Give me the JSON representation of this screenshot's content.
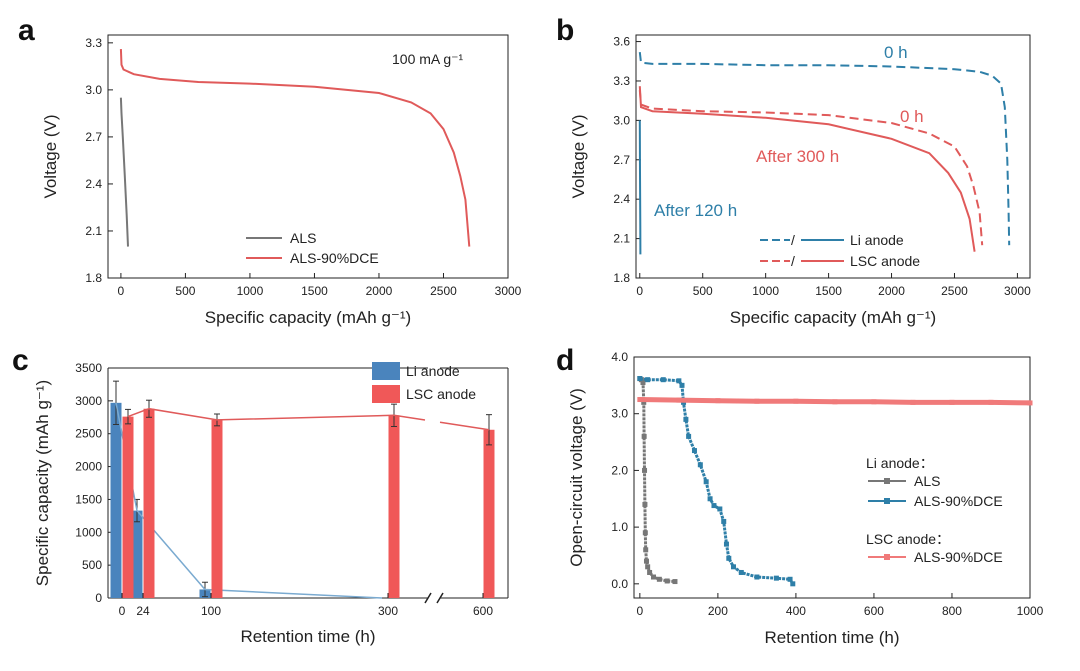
{
  "colors": {
    "gray": "#777777",
    "red": "#e05a5a",
    "red_bar": "#f05858",
    "blue": "#2e7fa8",
    "blue_bar": "#4a84bd",
    "blue_line": "#7aaad0",
    "pink": "#f07a7a"
  },
  "chart_data": [
    {
      "panel": "a",
      "type": "line",
      "annotation": "100 mA g⁻¹",
      "xlabel": "Specific capacity (mAh g⁻¹)",
      "ylabel": "Voltage (V)",
      "xlim": [
        -100,
        3000
      ],
      "ylim": [
        1.8,
        3.35
      ],
      "xticks": [
        "0",
        "500",
        "1000",
        "1500",
        "2000",
        "2500",
        "3000"
      ],
      "yticks": [
        "1.8",
        "2.1",
        "2.4",
        "2.7",
        "3.0",
        "3.3"
      ],
      "legend_position": "bottom-center",
      "series": [
        {
          "name": "ALS",
          "color": "gray",
          "dash": false,
          "points": [
            [
              0,
              2.95
            ],
            [
              5,
              2.85
            ],
            [
              15,
              2.7
            ],
            [
              30,
              2.45
            ],
            [
              45,
              2.2
            ],
            [
              55,
              2.0
            ]
          ]
        },
        {
          "name": "ALS-90%DCE",
          "color": "red",
          "dash": false,
          "points": [
            [
              0,
              3.26
            ],
            [
              5,
              3.16
            ],
            [
              20,
              3.13
            ],
            [
              100,
              3.1
            ],
            [
              300,
              3.07
            ],
            [
              600,
              3.05
            ],
            [
              1000,
              3.04
            ],
            [
              1500,
              3.02
            ],
            [
              2000,
              2.98
            ],
            [
              2250,
              2.92
            ],
            [
              2400,
              2.85
            ],
            [
              2500,
              2.75
            ],
            [
              2580,
              2.6
            ],
            [
              2630,
              2.45
            ],
            [
              2670,
              2.3
            ],
            [
              2700,
              2.0
            ]
          ]
        }
      ]
    },
    {
      "panel": "b",
      "type": "line",
      "xlabel": "Specific capacity (mAh g⁻¹)",
      "ylabel": "Voltage (V)",
      "xlim": [
        -30,
        3100
      ],
      "ylim": [
        1.8,
        3.65
      ],
      "xticks": [
        "0",
        "500",
        "1000",
        "1500",
        "2000",
        "2500",
        "3000"
      ],
      "yticks": [
        "1.8",
        "2.1",
        "2.4",
        "2.7",
        "3.0",
        "3.3",
        "3.6"
      ],
      "legend_position": "bottom-right",
      "legend": [
        {
          "label": "Li anode",
          "color": "blue"
        },
        {
          "label": "LSC anode",
          "color": "red"
        }
      ],
      "legend_sep": "/",
      "annotations": [
        {
          "text": "0 h",
          "color": "blue"
        },
        {
          "text": "0 h",
          "color": "red"
        },
        {
          "text": "After 300 h",
          "color": "red"
        },
        {
          "text": "After 120 h",
          "color": "blue"
        }
      ],
      "series": [
        {
          "name": "Li anode 0 h",
          "color": "blue",
          "dash": true,
          "points": [
            [
              0,
              3.52
            ],
            [
              10,
              3.44
            ],
            [
              100,
              3.43
            ],
            [
              500,
              3.43
            ],
            [
              1000,
              3.42
            ],
            [
              1500,
              3.42
            ],
            [
              2000,
              3.41
            ],
            [
              2500,
              3.39
            ],
            [
              2700,
              3.37
            ],
            [
              2800,
              3.34
            ],
            [
              2870,
              3.28
            ],
            [
              2900,
              3.1
            ],
            [
              2920,
              2.7
            ],
            [
              2930,
              2.3
            ],
            [
              2935,
              2.05
            ]
          ]
        },
        {
          "name": "Li anode after 120 h",
          "color": "blue",
          "dash": false,
          "points": [
            [
              0,
              3.0
            ],
            [
              2,
              2.6
            ],
            [
              4,
              2.2
            ],
            [
              5,
              1.98
            ]
          ]
        },
        {
          "name": "LSC anode 0 h",
          "color": "red",
          "dash": true,
          "points": [
            [
              0,
              3.23
            ],
            [
              10,
              3.12
            ],
            [
              100,
              3.09
            ],
            [
              500,
              3.07
            ],
            [
              1000,
              3.06
            ],
            [
              1500,
              3.04
            ],
            [
              2000,
              2.98
            ],
            [
              2300,
              2.9
            ],
            [
              2500,
              2.8
            ],
            [
              2600,
              2.65
            ],
            [
              2650,
              2.5
            ],
            [
              2700,
              2.3
            ],
            [
              2720,
              2.05
            ]
          ]
        },
        {
          "name": "LSC anode after 300 h",
          "color": "red",
          "dash": false,
          "points": [
            [
              0,
              3.26
            ],
            [
              10,
              3.1
            ],
            [
              100,
              3.07
            ],
            [
              500,
              3.05
            ],
            [
              1000,
              3.02
            ],
            [
              1500,
              2.97
            ],
            [
              2000,
              2.86
            ],
            [
              2300,
              2.75
            ],
            [
              2450,
              2.6
            ],
            [
              2550,
              2.45
            ],
            [
              2620,
              2.25
            ],
            [
              2660,
              2.0
            ]
          ]
        }
      ]
    },
    {
      "panel": "c",
      "type": "bar",
      "xlabel": "Retention time (h)",
      "ylabel": "Specific capacity (mAh g⁻¹)",
      "ylim": [
        0,
        3500
      ],
      "yticks": [
        "0",
        "500",
        "1000",
        "1500",
        "2000",
        "2500",
        "3000",
        "3500"
      ],
      "xticks": [
        "0",
        "24",
        "100",
        "300",
        "600"
      ],
      "x_axis_break": true,
      "legend_position": "top-right",
      "series": [
        {
          "name": "Li anode",
          "color": "blue_bar",
          "line_color": "blue_line",
          "categories": [
            "0",
            "24",
            "100",
            "300"
          ],
          "values": [
            2970,
            1330,
            130,
            0
          ],
          "errors": [
            330,
            170,
            110,
            0
          ]
        },
        {
          "name": "LSC anode",
          "color": "red_bar",
          "line_color": "red",
          "categories": [
            "0",
            "24",
            "100",
            "300",
            "600"
          ],
          "values": [
            2760,
            2880,
            2710,
            2780,
            2560
          ],
          "errors": [
            110,
            130,
            90,
            170,
            230
          ]
        }
      ]
    },
    {
      "panel": "d",
      "type": "scatter",
      "xlabel": "Retention time (h)",
      "ylabel": "Open-circuit voltage (V)",
      "xlim": [
        -15,
        1000
      ],
      "ylim": [
        -0.25,
        4.0
      ],
      "xticks": [
        "0",
        "200",
        "400",
        "600",
        "800",
        "1000"
      ],
      "yticks": [
        "0.0",
        "1.0",
        "2.0",
        "3.0",
        "4.0"
      ],
      "legend_position": "right",
      "legend_groups": [
        {
          "title": "Li anode：",
          "items": [
            "ALS",
            "ALS-90%DCE"
          ]
        },
        {
          "title": "LSC anode：",
          "items": [
            "ALS-90%DCE"
          ]
        }
      ],
      "series": [
        {
          "name": "Li anode ALS",
          "color": "gray",
          "points": [
            [
              0,
              3.62
            ],
            [
              4,
              3.6
            ],
            [
              8,
              3.55
            ],
            [
              10,
              3.2
            ],
            [
              11,
              2.6
            ],
            [
              12,
              2.0
            ],
            [
              13,
              1.4
            ],
            [
              14,
              0.9
            ],
            [
              15,
              0.6
            ],
            [
              17,
              0.4
            ],
            [
              20,
              0.3
            ],
            [
              25,
              0.2
            ],
            [
              35,
              0.12
            ],
            [
              50,
              0.08
            ],
            [
              70,
              0.05
            ],
            [
              90,
              0.04
            ]
          ]
        },
        {
          "name": "Li anode ALS-90%DCE",
          "color": "blue",
          "points": [
            [
              0,
              3.62
            ],
            [
              20,
              3.6
            ],
            [
              60,
              3.6
            ],
            [
              100,
              3.58
            ],
            [
              108,
              3.5
            ],
            [
              112,
              3.2
            ],
            [
              118,
              2.9
            ],
            [
              125,
              2.6
            ],
            [
              140,
              2.35
            ],
            [
              155,
              2.1
            ],
            [
              170,
              1.8
            ],
            [
              180,
              1.5
            ],
            [
              190,
              1.38
            ],
            [
              205,
              1.32
            ],
            [
              215,
              1.1
            ],
            [
              222,
              0.7
            ],
            [
              228,
              0.45
            ],
            [
              240,
              0.3
            ],
            [
              260,
              0.2
            ],
            [
              300,
              0.12
            ],
            [
              350,
              0.1
            ],
            [
              385,
              0.08
            ],
            [
              392,
              0.0
            ]
          ]
        },
        {
          "name": "LSC anode ALS-90%DCE",
          "color": "pink",
          "points": [
            [
              0,
              3.25
            ],
            [
              100,
              3.24
            ],
            [
              200,
              3.23
            ],
            [
              300,
              3.22
            ],
            [
              400,
              3.22
            ],
            [
              500,
              3.21
            ],
            [
              600,
              3.21
            ],
            [
              700,
              3.2
            ],
            [
              800,
              3.2
            ],
            [
              900,
              3.2
            ],
            [
              1000,
              3.19
            ]
          ]
        }
      ]
    }
  ]
}
